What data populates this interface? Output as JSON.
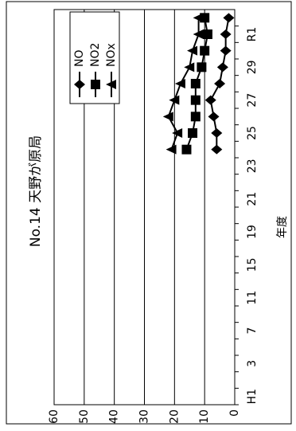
{
  "chart_data": {
    "type": "line",
    "title": "No.14 天野が原局",
    "x_label": "年度",
    "categories": [
      "H1",
      null,
      "3",
      null,
      "7",
      null,
      "11",
      null,
      "15",
      null,
      "19",
      null,
      "21",
      null,
      "23",
      null,
      "25",
      null,
      "27",
      null,
      "29",
      null,
      "R1",
      null
    ],
    "series": [
      {
        "name": "NO",
        "color": "#000000",
        "marker": "diamond",
        "values": [
          null,
          null,
          null,
          null,
          null,
          null,
          null,
          null,
          null,
          null,
          null,
          null,
          null,
          null,
          null,
          6,
          6,
          7,
          8,
          5,
          4,
          3,
          3,
          2
        ]
      },
      {
        "name": "NO2",
        "color": "#000000",
        "marker": "square",
        "values": [
          null,
          null,
          null,
          null,
          null,
          null,
          null,
          null,
          null,
          null,
          null,
          null,
          null,
          null,
          null,
          16,
          14,
          13,
          13,
          13,
          11,
          10,
          9,
          10
        ]
      },
      {
        "name": "NOx",
        "color": "#000000",
        "marker": "triangle",
        "values": [
          null,
          null,
          null,
          null,
          null,
          null,
          null,
          null,
          null,
          null,
          null,
          null,
          null,
          null,
          null,
          21,
          19,
          22,
          20,
          18,
          15,
          14,
          12,
          12
        ]
      }
    ],
    "ylim": [
      0,
      60
    ],
    "yticks": [
      0,
      10,
      20,
      30,
      40,
      50,
      60
    ],
    "grid": true,
    "legend": "top-right"
  }
}
